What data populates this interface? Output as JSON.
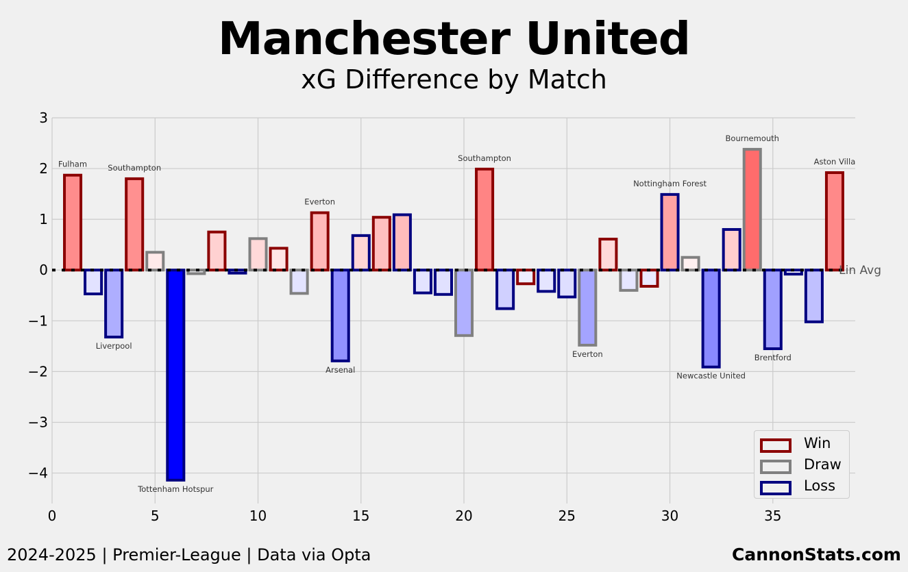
{
  "header": {
    "title": "Manchester United",
    "subtitle": "xG Difference by Match"
  },
  "footer": {
    "left": "2024-2025 | Premier-League | Data via Opta",
    "right": "CannonStats.com"
  },
  "legend": {
    "items": [
      {
        "label": "Win",
        "color": "#8b0000"
      },
      {
        "label": "Draw",
        "color": "#808080"
      },
      {
        "label": "Loss",
        "color": "#000080"
      }
    ]
  },
  "chart_data": {
    "type": "bar",
    "title": "xG Difference by Match",
    "xlabel": "",
    "ylabel": "",
    "xlim": [
      0,
      39
    ],
    "ylim": [
      -4.6,
      3
    ],
    "x_ticks": [
      0,
      5,
      10,
      15,
      20,
      25,
      30,
      35
    ],
    "y_ticks": [
      -4,
      -3,
      -2,
      -1,
      0,
      1,
      2,
      3
    ],
    "y_tick_labels": [
      "−4",
      "−3",
      "−2",
      "−1",
      "0",
      "1",
      "2",
      "3"
    ],
    "grid": true,
    "reference_line": {
      "value": 0,
      "label": "Lin Avg"
    },
    "legend_position": "bottom-right",
    "result_colors": {
      "W": "#8b0000",
      "D": "#808080",
      "L": "#000080"
    },
    "bars": [
      {
        "match": 1,
        "value": 1.87,
        "result": "W",
        "label": "Fulham"
      },
      {
        "match": 2,
        "value": -0.47,
        "result": "L"
      },
      {
        "match": 3,
        "value": -1.32,
        "result": "L",
        "label": "Liverpool"
      },
      {
        "match": 4,
        "value": 1.8,
        "result": "W",
        "label": "Southampton"
      },
      {
        "match": 5,
        "value": 0.35,
        "result": "D"
      },
      {
        "match": 6,
        "value": -4.14,
        "result": "L",
        "label": "Tottenham Hotspur"
      },
      {
        "match": 7,
        "value": -0.07,
        "result": "D"
      },
      {
        "match": 8,
        "value": 0.75,
        "result": "W"
      },
      {
        "match": 9,
        "value": -0.06,
        "result": "L"
      },
      {
        "match": 10,
        "value": 0.62,
        "result": "D"
      },
      {
        "match": 11,
        "value": 0.43,
        "result": "W"
      },
      {
        "match": 12,
        "value": -0.46,
        "result": "D"
      },
      {
        "match": 13,
        "value": 1.13,
        "result": "W",
        "label": "Everton"
      },
      {
        "match": 14,
        "value": -1.79,
        "result": "L",
        "label": "Arsenal"
      },
      {
        "match": 15,
        "value": 0.68,
        "result": "L"
      },
      {
        "match": 16,
        "value": 1.04,
        "result": "W"
      },
      {
        "match": 17,
        "value": 1.09,
        "result": "L"
      },
      {
        "match": 18,
        "value": -0.45,
        "result": "L"
      },
      {
        "match": 19,
        "value": -0.48,
        "result": "L"
      },
      {
        "match": 20,
        "value": -1.29,
        "result": "D"
      },
      {
        "match": 21,
        "value": 1.99,
        "result": "W",
        "label": "Southampton"
      },
      {
        "match": 22,
        "value": -0.76,
        "result": "L"
      },
      {
        "match": 23,
        "value": -0.27,
        "result": "W"
      },
      {
        "match": 24,
        "value": -0.42,
        "result": "L"
      },
      {
        "match": 25,
        "value": -0.53,
        "result": "L"
      },
      {
        "match": 26,
        "value": -1.48,
        "result": "D",
        "label": "Everton"
      },
      {
        "match": 27,
        "value": 0.61,
        "result": "W"
      },
      {
        "match": 28,
        "value": -0.4,
        "result": "D"
      },
      {
        "match": 29,
        "value": -0.32,
        "result": "W"
      },
      {
        "match": 30,
        "value": 1.49,
        "result": "L",
        "label": "Nottingham Forest"
      },
      {
        "match": 31,
        "value": 0.25,
        "result": "D"
      },
      {
        "match": 32,
        "value": -1.91,
        "result": "L",
        "label": "Newcastle United"
      },
      {
        "match": 33,
        "value": 0.8,
        "result": "L"
      },
      {
        "match": 34,
        "value": 2.38,
        "result": "D",
        "label": "Bournemouth"
      },
      {
        "match": 35,
        "value": -1.55,
        "result": "L",
        "label": "Brentford"
      },
      {
        "match": 36,
        "value": -0.08,
        "result": "L"
      },
      {
        "match": 37,
        "value": -1.02,
        "result": "L"
      },
      {
        "match": 38,
        "value": 1.92,
        "result": "W",
        "label": "Aston Villa"
      }
    ]
  }
}
